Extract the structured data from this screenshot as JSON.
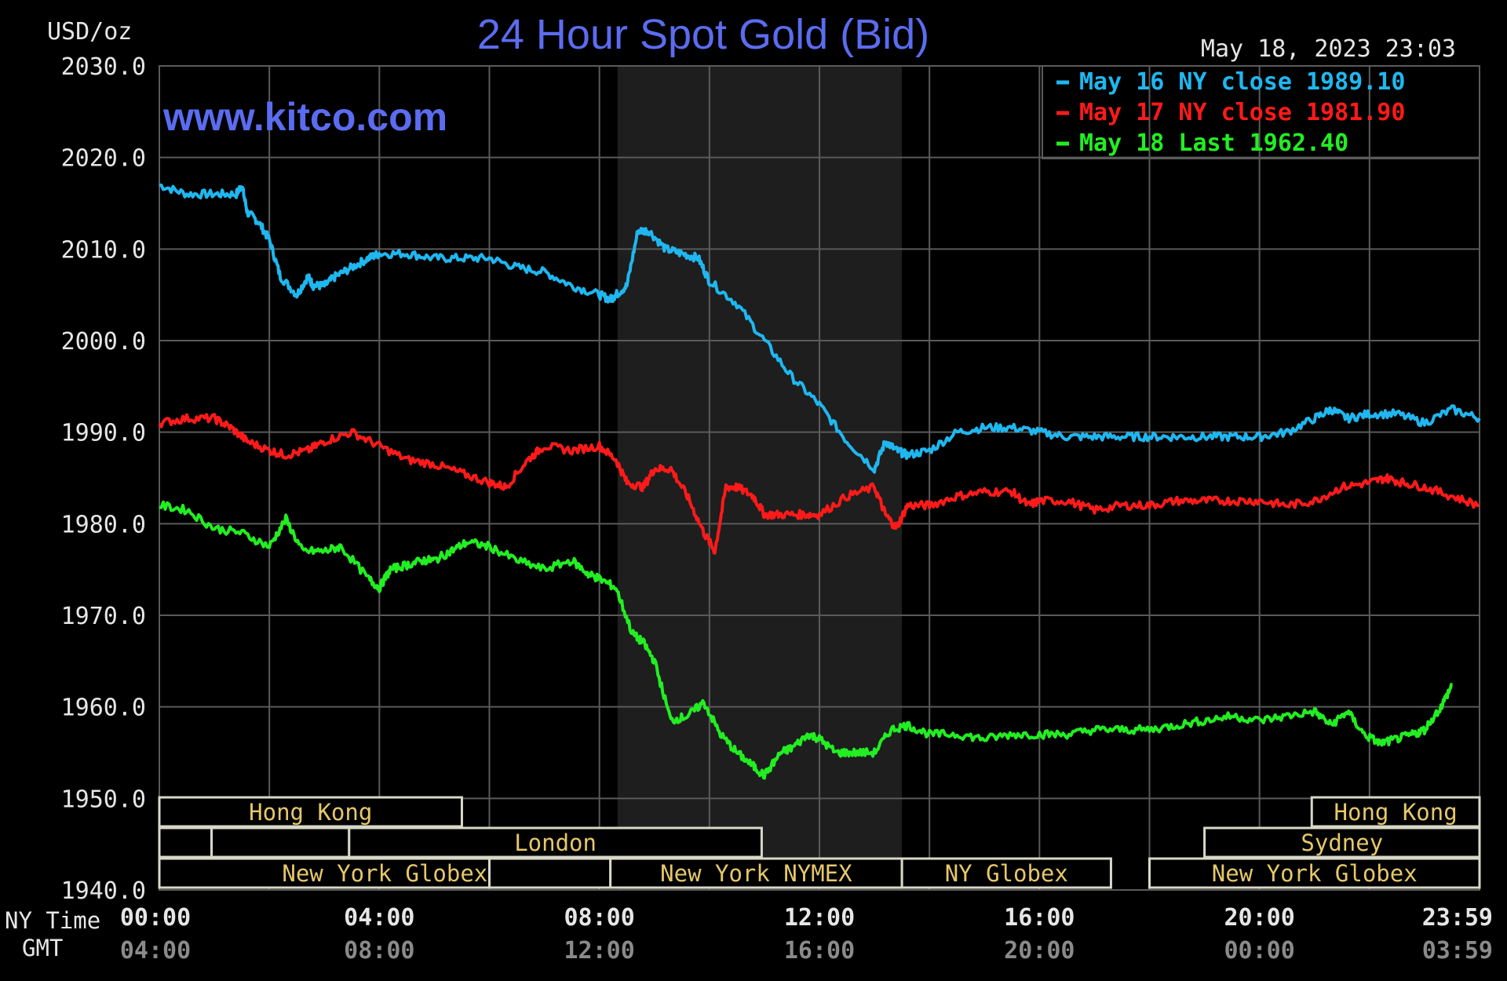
{
  "header": {
    "title": "24 Hour Spot Gold (Bid)",
    "unit": "USD/oz",
    "timestamp": "May 18, 2023 23:03",
    "watermark": "www.kitco.com"
  },
  "colors": {
    "background": "#000000",
    "grid": "#5a5a5a",
    "title": "#5b6cf0",
    "watermark": "#5b6cf0",
    "axis_text": "#e6e6e6",
    "gmt_text": "#8a8a8a",
    "session_text": "#e6c86a",
    "session_border": "#d8d8c8",
    "nymex_shade": "#1e1e1e"
  },
  "legend": [
    {
      "label": "May 16 NY close 1989.10",
      "color": "#1fb7f0"
    },
    {
      "label": "May 17 NY close 1981.90",
      "color": "#ff1a1a"
    },
    {
      "label": "May 18 Last 1962.40",
      "color": "#22ee22"
    }
  ],
  "axis": {
    "ny_label": "NY Time",
    "gmt_label": "GMT",
    "x_ny_ticks": [
      "00:00",
      "04:00",
      "08:00",
      "12:00",
      "16:00",
      "20:00",
      "23:59"
    ],
    "x_gmt_ticks": [
      "04:00",
      "08:00",
      "12:00",
      "16:00",
      "20:00",
      "00:00",
      "03:59"
    ],
    "y_ticks": [
      "2030.0",
      "2020.0",
      "2010.0",
      "2000.0",
      "1990.0",
      "1980.0",
      "1970.0",
      "1960.0",
      "1950.0",
      "1940.0"
    ]
  },
  "sessions": [
    {
      "label": "Hong Kong",
      "row": 0,
      "start": 0,
      "end": 5.5
    },
    {
      "label": "",
      "row": 1,
      "start": 0,
      "end": 0.95
    },
    {
      "label": "",
      "row": 1,
      "start": 0.95,
      "end": 3.45
    },
    {
      "label": "London",
      "row": 1,
      "start": 3.45,
      "end": 10.95
    },
    {
      "label": "New York Globex",
      "row": 2,
      "start": 0,
      "end": 8.2
    },
    {
      "label": "",
      "row": 2,
      "start": 6,
      "end": 8.2
    },
    {
      "label": "New York NYMEX",
      "row": 2,
      "start": 8.2,
      "end": 13.5
    },
    {
      "label": "NY Globex",
      "row": 2,
      "start": 13.5,
      "end": 17.3
    },
    {
      "label": "Hong Kong",
      "row": 0,
      "start": 20.95,
      "end": 24
    },
    {
      "label": "Sydney",
      "row": 1,
      "start": 19.0,
      "end": 24
    },
    {
      "label": "New York Globex",
      "row": 2,
      "start": 18.0,
      "end": 24
    }
  ],
  "chart_data": {
    "type": "line",
    "x_unit": "NY time (hours)",
    "xlim": [
      0,
      24
    ],
    "ylim": [
      1940,
      2030
    ],
    "ylabel": "USD/oz",
    "grid": true,
    "legend_position": "top-right",
    "series": [
      {
        "name": "May 16 NY close 1989.10",
        "color": "#1fb7f0",
        "x": [
          0,
          0.5,
          1,
          1.4,
          1.5,
          1.6,
          1.8,
          2.0,
          2.2,
          2.5,
          2.7,
          2.8,
          3.0,
          3.2,
          3.5,
          3.8,
          4.0,
          4.5,
          5.0,
          5.5,
          6.0,
          6.5,
          7.0,
          7.5,
          8.0,
          8.2,
          8.3,
          8.5,
          8.7,
          8.9,
          9.2,
          9.5,
          9.8,
          10.0,
          10.5,
          11.0,
          11.5,
          12.0,
          12.5,
          13.0,
          13.2,
          13.4,
          13.6,
          14.0,
          14.5,
          15.0,
          15.5,
          16.0,
          16.5,
          17.0,
          17.5,
          18.0,
          18.5,
          19.0,
          19.5,
          20.0,
          20.5,
          21.0,
          21.3,
          21.6,
          22.0,
          22.5,
          23.0,
          23.5,
          24.0
        ],
        "y": [
          2017,
          2016,
          2016,
          2016,
          2017,
          2014,
          2013,
          2011,
          2007,
          2005,
          2007,
          2006,
          2006,
          2007,
          2008,
          2009,
          2009.5,
          2009.5,
          2009,
          2009,
          2009,
          2008,
          2007.5,
          2006,
          2005,
          2004.5,
          2005,
          2006,
          2012,
          2012,
          2010,
          2009.5,
          2009,
          2006.5,
          2004,
          2000,
          1996,
          1993,
          1989,
          1986,
          1989,
          1988,
          1987.5,
          1988,
          1990,
          1990.5,
          1990.5,
          1990,
          1989.5,
          1989.5,
          1989.5,
          1989.5,
          1989.5,
          1989.5,
          1989.5,
          1989.5,
          1990,
          1991.5,
          1992.5,
          1991.5,
          1992,
          1992,
          1991,
          1992.5,
          1991.5
        ]
      },
      {
        "name": "May 17 NY close 1981.90",
        "color": "#ff1a1a",
        "x": [
          0,
          0.5,
          1,
          1.3,
          1.6,
          2.0,
          2.3,
          2.7,
          3.0,
          3.5,
          4.0,
          4.5,
          5.0,
          5.5,
          6.0,
          6.3,
          6.7,
          7.0,
          7.5,
          8.0,
          8.3,
          8.5,
          8.8,
          9.0,
          9.3,
          9.6,
          9.9,
          10.1,
          10.3,
          10.5,
          10.8,
          11.0,
          11.3,
          11.7,
          12.0,
          12.5,
          13.0,
          13.2,
          13.4,
          13.6,
          14.0,
          14.5,
          15.0,
          15.5,
          15.8,
          16.0,
          16.5,
          17.0,
          17.5,
          18.0,
          18.5,
          19.0,
          19.5,
          20.0,
          20.5,
          21.0,
          21.5,
          22.0,
          22.3,
          22.6,
          23.0,
          23.5,
          24.0
        ],
        "y": [
          1991,
          1991.5,
          1991.5,
          1990.5,
          1989,
          1988,
          1987.5,
          1988,
          1989,
          1990,
          1988.5,
          1987,
          1986.5,
          1985.5,
          1984.5,
          1984,
          1987,
          1988.5,
          1988,
          1988.5,
          1987,
          1984.5,
          1984,
          1986,
          1986,
          1983,
          1979,
          1977,
          1984,
          1984,
          1983,
          1981,
          1981,
          1981,
          1981,
          1983,
          1984,
          1981,
          1979.5,
          1982,
          1982,
          1983,
          1983.5,
          1983.5,
          1982,
          1982.5,
          1982.5,
          1981.5,
          1982,
          1982,
          1982.5,
          1982.5,
          1982.5,
          1982.5,
          1982,
          1982.5,
          1984,
          1984.5,
          1985,
          1984.5,
          1984,
          1983,
          1982
        ]
      },
      {
        "name": "May 18 Last 1962.40",
        "color": "#22ee22",
        "x": [
          0,
          0.5,
          1,
          1.5,
          2.0,
          2.3,
          2.6,
          3.0,
          3.3,
          3.8,
          4.0,
          4.2,
          4.5,
          4.8,
          5.0,
          5.3,
          5.6,
          6.0,
          6.5,
          7.0,
          7.5,
          7.8,
          8.0,
          8.3,
          8.6,
          8.8,
          9.0,
          9.3,
          9.6,
          9.9,
          10.2,
          10.5,
          10.8,
          11.0,
          11.3,
          11.5,
          11.8,
          12.0,
          12.3,
          12.6,
          13.0,
          13.3,
          13.6,
          14.0,
          14.5,
          15.0,
          15.5,
          16.0,
          16.5,
          17.0,
          17.5,
          18.0,
          18.5,
          19.0,
          19.5,
          20.0,
          20.5,
          21.0,
          21.3,
          21.6,
          21.9,
          22.2,
          22.5,
          22.8,
          23.0,
          23.3,
          23.5
        ],
        "y": [
          1982,
          1981.5,
          1979.5,
          1979,
          1977.5,
          1980.5,
          1977,
          1977,
          1977.5,
          1974,
          1973,
          1975,
          1975.5,
          1976,
          1976,
          1977,
          1978,
          1977.5,
          1976,
          1975,
          1976,
          1974.5,
          1974,
          1973,
          1968,
          1967,
          1965,
          1958.5,
          1959,
          1960.5,
          1957,
          1955,
          1953.5,
          1952.5,
          1955,
          1955.5,
          1957,
          1956.5,
          1955,
          1955,
          1955,
          1957.5,
          1958,
          1957,
          1957,
          1956.5,
          1957,
          1957,
          1957,
          1957.5,
          1957.5,
          1957.5,
          1958,
          1958.5,
          1959,
          1958.5,
          1959,
          1959.5,
          1958,
          1959.5,
          1957,
          1956,
          1956.5,
          1957,
          1957.5,
          1960,
          1962.4
        ]
      }
    ]
  }
}
